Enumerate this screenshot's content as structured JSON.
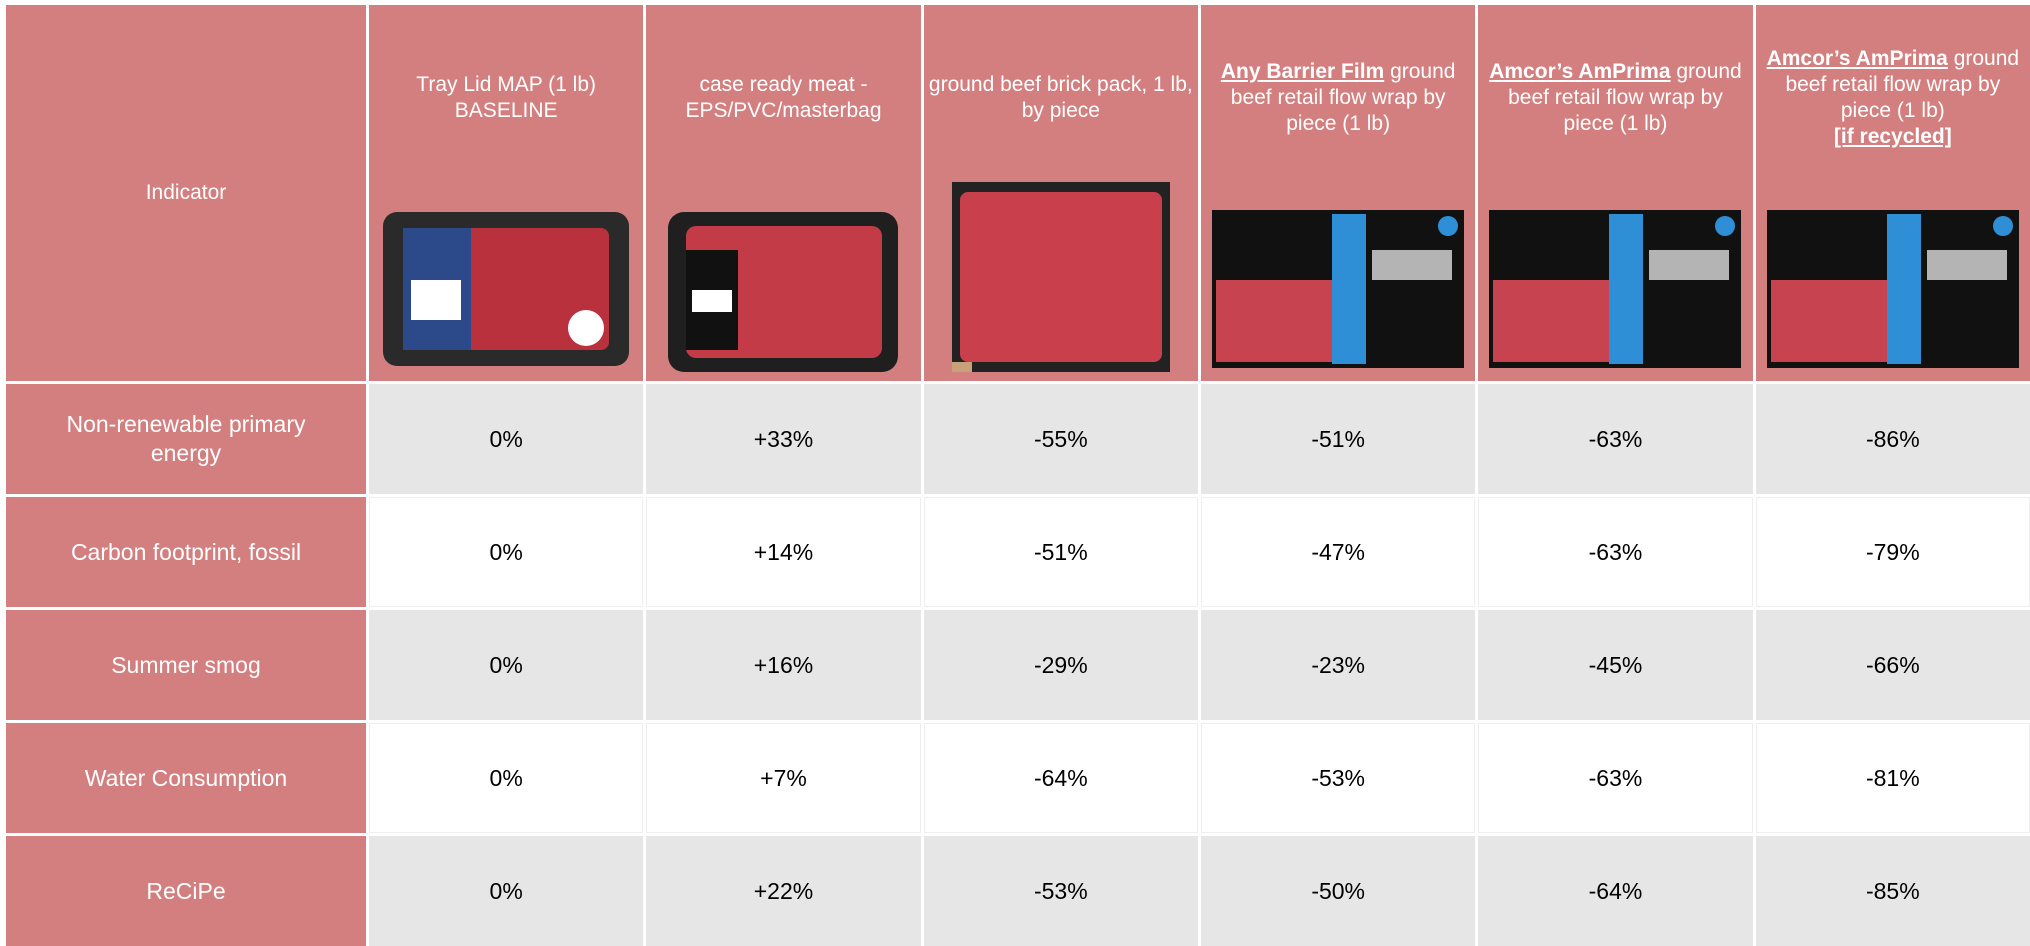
{
  "table": {
    "corner": "Indicator",
    "columns": [
      {
        "text": "Tray Lid MAP (1 lb) BASELINE"
      },
      {
        "text": "case ready meat - EPS/PVC/masterbag"
      },
      {
        "text": "ground beef brick pack, 1 lb, by piece"
      },
      {
        "bold": "Any Barrier Film",
        "text": " ground beef retail flow wrap by piece (1 lb)"
      },
      {
        "bold": "Amcor’s AmPrima",
        "text": " ground beef retail flow wrap by piece (1 lb)"
      },
      {
        "bold": "Amcor’s AmPrima",
        "text": " ground beef retail flow wrap by piece (1 lb)",
        "note": "[if recycled]"
      }
    ],
    "rows": [
      {
        "label": "Non-renewable primary energy",
        "cells": [
          "0%",
          "+33%",
          "-55%",
          "-51%",
          "-63%",
          "-86%"
        ]
      },
      {
        "label": "Carbon footprint, fossil",
        "cells": [
          "0%",
          "+14%",
          "-51%",
          "-47%",
          "-63%",
          "-79%"
        ]
      },
      {
        "label": "Summer smog",
        "cells": [
          "0%",
          "+16%",
          "-29%",
          "-23%",
          "-45%",
          "-66%"
        ]
      },
      {
        "label": "Water Consumption",
        "cells": [
          "0%",
          "+7%",
          "-64%",
          "-53%",
          "-63%",
          "-81%"
        ]
      },
      {
        "label": "ReCiPe",
        "cells": [
          "0%",
          "+22%",
          "-53%",
          "-50%",
          "-64%",
          "-85%"
        ]
      }
    ]
  }
}
